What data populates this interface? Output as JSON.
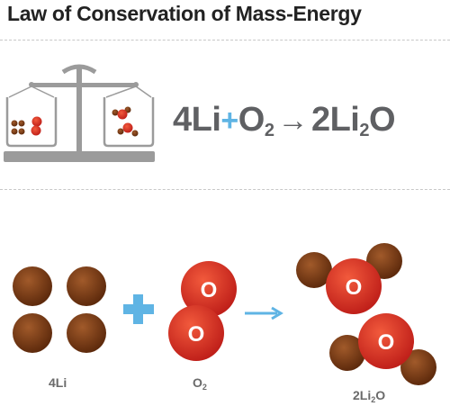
{
  "title": "Law of Conservation of Mass-Energy",
  "equation": {
    "reactant1": "4Li",
    "plus": "+",
    "reactant2_base": "O",
    "reactant2_sub": "2",
    "arrow": "→",
    "product_a": "2Li",
    "product_sub": "2",
    "product_b": "O"
  },
  "labels": {
    "li": "4Li",
    "o2_base": "O",
    "o2_sub": "2",
    "product_a": "2Li",
    "product_sub": "2",
    "product_b": "O"
  },
  "atom_letter": "O",
  "stock_id": "1908547699",
  "colors": {
    "lithium": "#7a3a12",
    "oxygen": "#e53225",
    "plus": "#5fb4e4",
    "arrow": "#5fb4e4",
    "scale": "#9b9b9b",
    "equation_text": "#5f6063"
  }
}
